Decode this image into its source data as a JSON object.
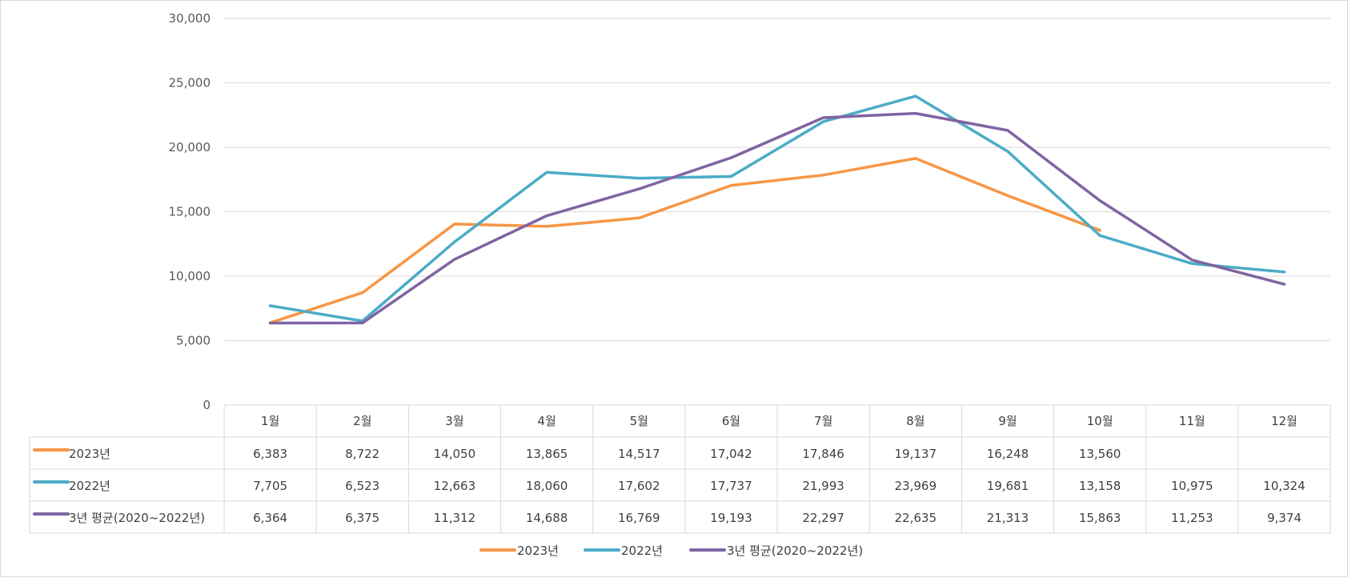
{
  "chart_data": {
    "type": "line",
    "categories": [
      "1월",
      "2월",
      "3월",
      "4월",
      "5월",
      "6월",
      "7월",
      "8월",
      "9월",
      "10월",
      "11월",
      "12월"
    ],
    "series": [
      {
        "name": "2023년",
        "color": "#f79646",
        "values": [
          6383,
          8722,
          14050,
          13865,
          14517,
          17042,
          17846,
          19137,
          16248,
          13560,
          null,
          null
        ]
      },
      {
        "name": "2022년",
        "color": "#4bacc6",
        "values": [
          7705,
          6523,
          12663,
          18060,
          17602,
          17737,
          21993,
          23969,
          19681,
          13158,
          10975,
          10324
        ]
      },
      {
        "name": "3년 평균(2020~2022년)",
        "color": "#8064a2",
        "values": [
          6364,
          6375,
          11312,
          14688,
          16769,
          19193,
          22297,
          22635,
          21313,
          15863,
          11253,
          9374
        ]
      }
    ],
    "ylim": [
      0,
      30000
    ],
    "yticks": [
      "0",
      "5,000",
      "10,000",
      "15,000",
      "20,000",
      "25,000",
      "30,000"
    ],
    "table": [
      [
        "6,383",
        "8,722",
        "14,050",
        "13,865",
        "14,517",
        "17,042",
        "17,846",
        "19,137",
        "16,248",
        "13,560",
        "",
        ""
      ],
      [
        "7,705",
        "6,523",
        "12,663",
        "18,060",
        "17,602",
        "17,737",
        "21,993",
        "23,969",
        "19,681",
        "13,158",
        "10,975",
        "10,324"
      ],
      [
        "6,364",
        "6,375",
        "11,312",
        "14,688",
        "16,769",
        "19,193",
        "22,297",
        "22,635",
        "21,313",
        "15,863",
        "11,253",
        "9,374"
      ]
    ],
    "grid": true,
    "legend": "bottom"
  }
}
